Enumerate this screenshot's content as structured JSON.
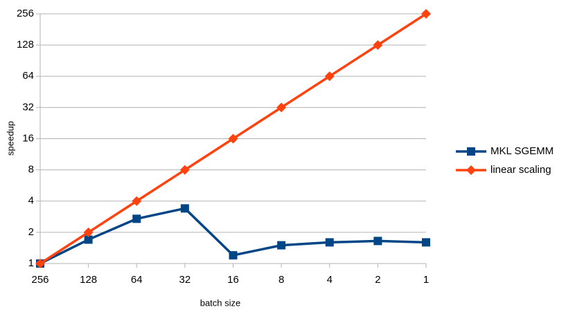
{
  "chart_data": {
    "type": "line",
    "x_label": "batch size",
    "y_label": "speedup",
    "categories": [
      "256",
      "128",
      "64",
      "32",
      "16",
      "8",
      "4",
      "2",
      "1"
    ],
    "series": [
      {
        "name": "MKL SGEMM",
        "color": "#004586",
        "marker": "square",
        "values": [
          1,
          1.7,
          2.7,
          3.4,
          1.2,
          1.5,
          1.6,
          1.65,
          1.6
        ]
      },
      {
        "name": "linear scaling",
        "color": "#ff420e",
        "marker": "diamond",
        "values": [
          1,
          2,
          4,
          8,
          16,
          32,
          64,
          128,
          256
        ]
      }
    ],
    "ylim": [
      1,
      256
    ],
    "yticks": [
      1,
      2,
      4,
      8,
      16,
      32,
      64,
      128,
      256
    ],
    "log_scale": true,
    "log_base": 2,
    "grid": true,
    "legend": "right"
  }
}
